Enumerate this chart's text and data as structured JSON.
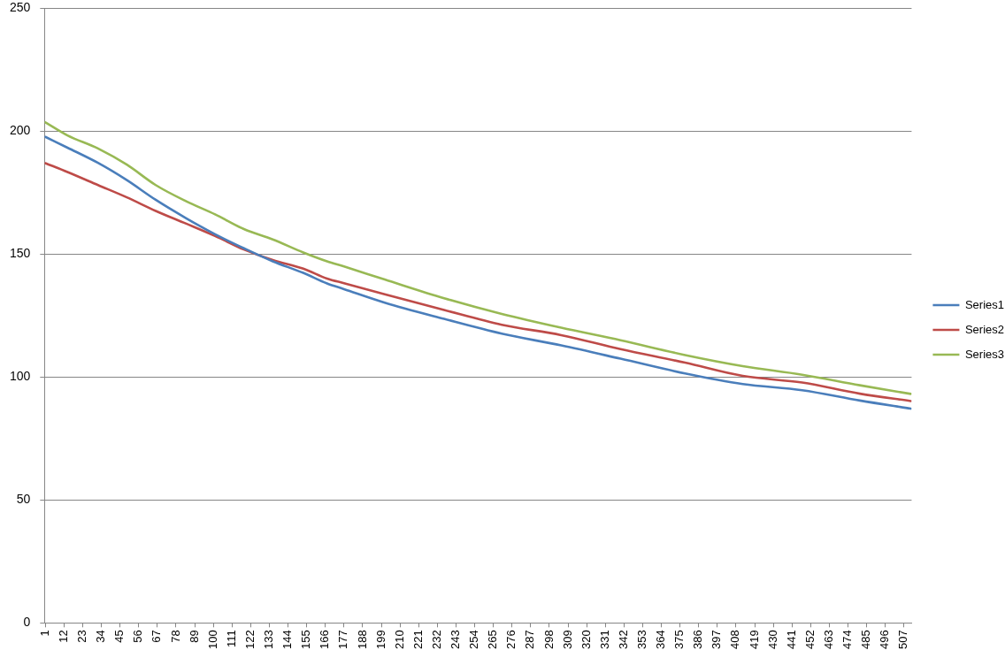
{
  "chart_data": {
    "type": "line",
    "x": [
      1,
      14,
      32,
      49,
      66,
      84,
      101,
      118,
      135,
      153,
      167,
      177,
      201,
      236,
      270,
      305,
      340,
      378,
      412,
      447,
      481,
      511
    ],
    "xlim": [
      0.5,
      511.5
    ],
    "xticks": [
      1,
      12,
      23,
      34,
      45,
      56,
      67,
      78,
      89,
      100,
      111,
      122,
      133,
      144,
      155,
      166,
      177,
      188,
      199,
      210,
      221,
      232,
      243,
      254,
      265,
      276,
      287,
      298,
      309,
      320,
      331,
      342,
      353,
      364,
      375,
      386,
      397,
      408,
      419,
      430,
      441,
      452,
      463,
      474,
      485,
      496,
      507
    ],
    "ylim": [
      0,
      250
    ],
    "yticks": [
      0,
      50,
      100,
      150,
      200,
      250
    ],
    "grid": "y",
    "legend": "right",
    "marker": "none",
    "line_style": "solid",
    "series": [
      {
        "name": "Series1",
        "color": "#4a7ebb",
        "values": [
          197.6,
          193.2,
          187,
          180,
          172,
          164.5,
          158,
          152.3,
          147,
          142.3,
          138,
          135.7,
          130.2,
          123.6,
          117.6,
          112.8,
          107.4,
          101.4,
          97.1,
          94.6,
          90.4,
          87.1
        ]
      },
      {
        "name": "Series2",
        "color": "#be4b48",
        "values": [
          186.9,
          183.3,
          178,
          173,
          167.5,
          162.3,
          157.3,
          151.8,
          147.5,
          144,
          140,
          138.1,
          133.6,
          127.2,
          121.2,
          117,
          111.3,
          105.8,
          100.4,
          97.7,
          93.2,
          90.2
        ]
      },
      {
        "name": "Series3",
        "color": "#98b954",
        "values": [
          203.5,
          198.2,
          192.9,
          186.3,
          178,
          171.4,
          166.1,
          160.1,
          155.9,
          150.6,
          147,
          144.9,
          139.6,
          132,
          125.6,
          120,
          114.9,
          108.9,
          104.4,
          100.9,
          96.6,
          93.1
        ]
      }
    ]
  }
}
